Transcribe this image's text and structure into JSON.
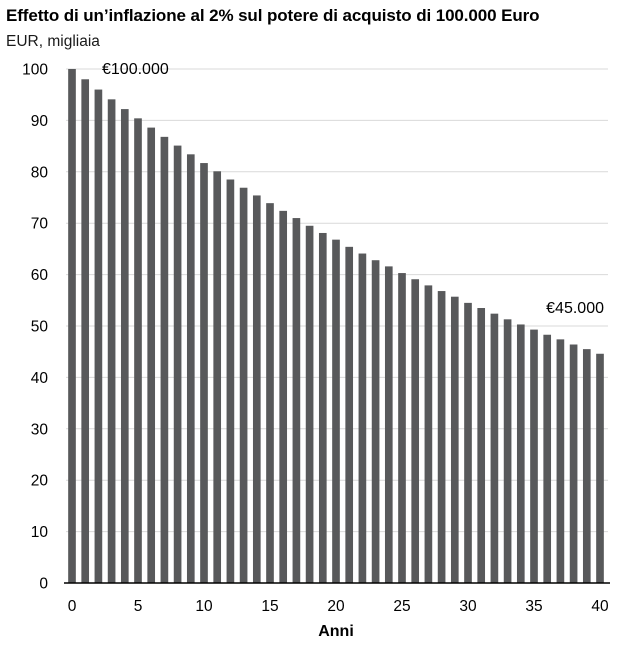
{
  "chart_data": {
    "type": "bar",
    "title": "Effetto di un’inflazione al 2% sul potere di acquisto di 100.000 Euro",
    "subtitle": "EUR, migliaia",
    "xlabel": "Anni",
    "ylabel": "",
    "ylim": [
      0,
      100
    ],
    "yticks": [
      0,
      10,
      20,
      30,
      40,
      50,
      60,
      70,
      80,
      90,
      100
    ],
    "xticks": [
      0,
      5,
      10,
      15,
      20,
      25,
      30,
      35,
      40
    ],
    "grid": true,
    "legend": "none",
    "categories": [
      0,
      1,
      2,
      3,
      4,
      5,
      6,
      7,
      8,
      9,
      10,
      11,
      12,
      13,
      14,
      15,
      16,
      17,
      18,
      19,
      20,
      21,
      22,
      23,
      24,
      25,
      26,
      27,
      28,
      29,
      30,
      31,
      32,
      33,
      34,
      35,
      36,
      37,
      38,
      39,
      40
    ],
    "values": [
      100.0,
      98.0,
      96.0,
      94.1,
      92.2,
      90.4,
      88.6,
      86.8,
      85.1,
      83.4,
      81.7,
      80.1,
      78.5,
      76.9,
      75.4,
      73.9,
      72.4,
      71.0,
      69.5,
      68.1,
      66.8,
      65.4,
      64.1,
      62.8,
      61.6,
      60.3,
      59.1,
      57.9,
      56.8,
      55.7,
      54.5,
      53.5,
      52.4,
      51.3,
      50.3,
      49.3,
      48.3,
      47.4,
      46.4,
      45.5,
      44.6
    ],
    "annotations": [
      {
        "text": "€100.000",
        "x": 0,
        "y": 100
      },
      {
        "text": "€45.000",
        "x": 40,
        "y": 44.6
      }
    ],
    "colors": {
      "bar": "#58595b",
      "grid": "#d9d9d9",
      "axis": "#000000",
      "text": "#000000"
    }
  }
}
